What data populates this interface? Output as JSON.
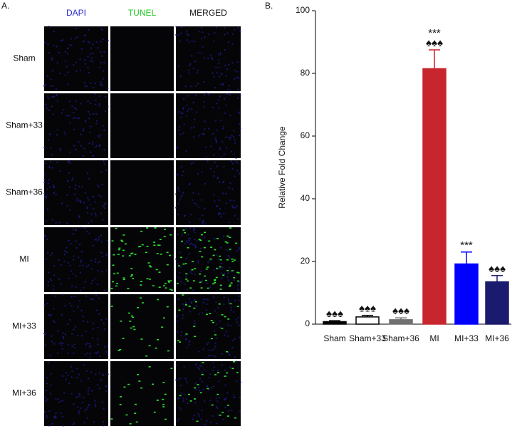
{
  "panel_a": {
    "label": "A.",
    "columns": [
      "DAPI",
      "TUNEL",
      "MERGED"
    ],
    "column_colors": [
      "#2a2ad0",
      "#22cc22",
      "#111111"
    ],
    "rows": [
      "Sham",
      "Sham+33",
      "Sham+36",
      "MI",
      "MI+33",
      "MI+36"
    ]
  },
  "chart_data": {
    "type": "bar",
    "panel_label": "B.",
    "ylabel": "Relative Fold Change",
    "categories": [
      "Sham",
      "Sham+33",
      "Sham+36",
      "MI",
      "MI+33",
      "MI+36"
    ],
    "values": [
      0.8,
      2.3,
      1.4,
      81.5,
      19.2,
      13.5
    ],
    "errors": [
      0.3,
      0.5,
      0.6,
      6.0,
      3.8,
      2.0
    ],
    "colors": [
      "#000000",
      "#ffffff",
      "#707070",
      "#c8262e",
      "#0000ff",
      "#1a1a6e"
    ],
    "annotations": [
      [
        "♠♠♠"
      ],
      [
        "♠♠♠"
      ],
      [
        "♠♠♠"
      ],
      [
        "♠♠♠",
        "***"
      ],
      [
        "***"
      ],
      [
        "♠♠♠"
      ]
    ],
    "ylim": [
      0,
      100
    ],
    "yticks": [
      0,
      20,
      40,
      60,
      80,
      100
    ]
  }
}
